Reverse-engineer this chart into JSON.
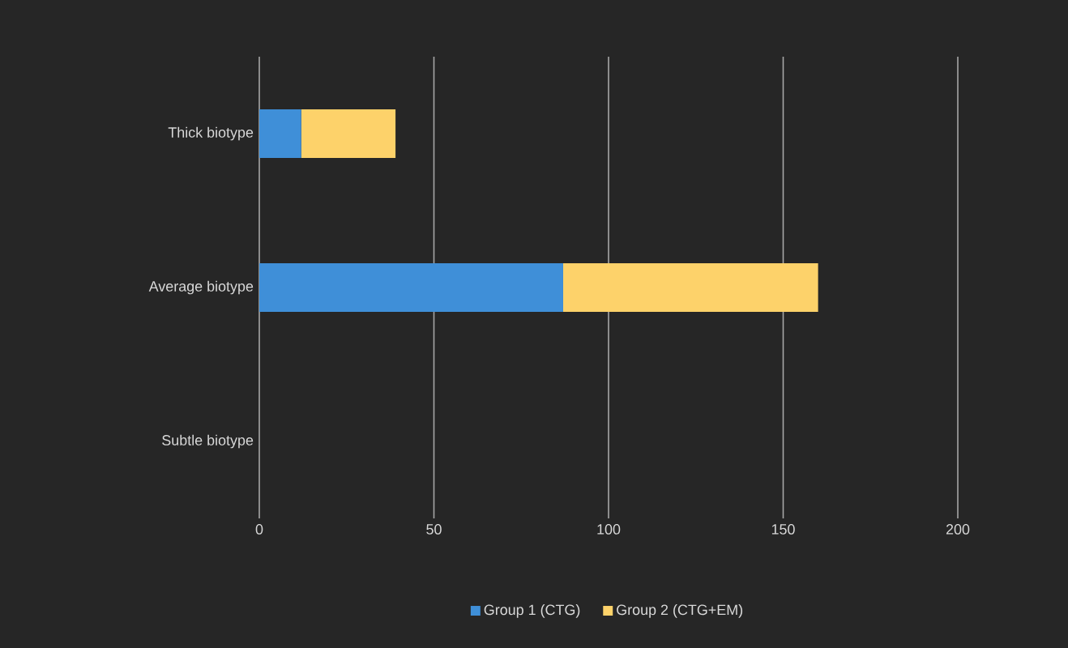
{
  "chart_data": {
    "type": "bar",
    "orientation": "horizontal",
    "stacked": true,
    "categories": [
      "Thick biotype",
      "Average biotype",
      "Subtle biotype"
    ],
    "series": [
      {
        "name": "Group 1 (CTG)",
        "color": "#3f8fd8",
        "values": [
          12,
          87,
          0
        ]
      },
      {
        "name": "Group 2 (CTG+EM)",
        "color": "#fdd26a",
        "values": [
          27,
          73,
          0
        ]
      }
    ],
    "xlim": [
      0,
      200
    ],
    "xticks": [
      0,
      50,
      100,
      150,
      200
    ],
    "grid": "x",
    "legend": "bottom"
  }
}
